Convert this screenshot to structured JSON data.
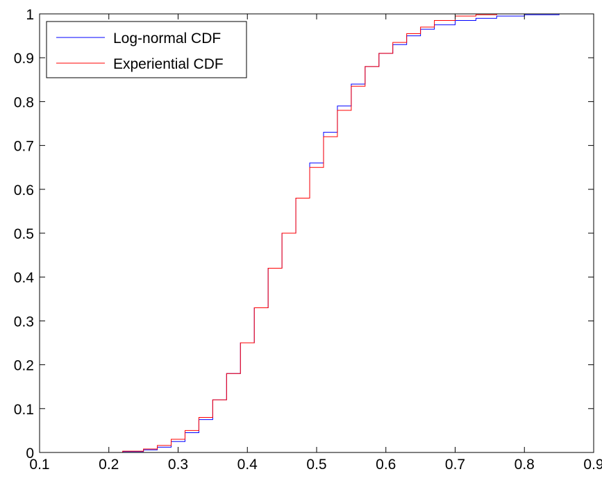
{
  "chart_data": {
    "type": "line",
    "xlim": [
      0.1,
      0.9
    ],
    "ylim": [
      0,
      1
    ],
    "xticks": [
      "0.1",
      "0.2",
      "0.3",
      "0.4",
      "0.5",
      "0.6",
      "0.7",
      "0.8",
      "0.9"
    ],
    "yticks": [
      "0",
      "0.1",
      "0.2",
      "0.3",
      "0.4",
      "0.5",
      "0.6",
      "0.7",
      "0.8",
      "0.9",
      "1"
    ],
    "grid": false,
    "legend_position": "top-left",
    "series": [
      {
        "name": "Log-normal CDF",
        "color": "#0000ff",
        "x": [
          0.19,
          0.22,
          0.25,
          0.27,
          0.29,
          0.31,
          0.33,
          0.35,
          0.37,
          0.39,
          0.41,
          0.43,
          0.45,
          0.47,
          0.49,
          0.51,
          0.53,
          0.55,
          0.57,
          0.59,
          0.61,
          0.63,
          0.65,
          0.67,
          0.7,
          0.73,
          0.76,
          0.8,
          0.85
        ],
        "y": [
          0.0,
          0.002,
          0.006,
          0.012,
          0.025,
          0.045,
          0.075,
          0.12,
          0.18,
          0.25,
          0.33,
          0.42,
          0.5,
          0.58,
          0.66,
          0.73,
          0.79,
          0.84,
          0.88,
          0.91,
          0.93,
          0.95,
          0.965,
          0.975,
          0.985,
          0.99,
          0.995,
          0.998,
          1.0
        ]
      },
      {
        "name": "Experiential CDF",
        "color": "#ff0000",
        "x": [
          0.19,
          0.22,
          0.25,
          0.27,
          0.29,
          0.31,
          0.33,
          0.35,
          0.37,
          0.39,
          0.41,
          0.43,
          0.45,
          0.47,
          0.49,
          0.51,
          0.53,
          0.55,
          0.57,
          0.59,
          0.61,
          0.63,
          0.65,
          0.67,
          0.7,
          0.73,
          0.76,
          0.8,
          0.85
        ],
        "y": [
          0.0,
          0.003,
          0.008,
          0.016,
          0.03,
          0.05,
          0.08,
          0.12,
          0.18,
          0.25,
          0.33,
          0.42,
          0.5,
          0.58,
          0.65,
          0.72,
          0.78,
          0.835,
          0.88,
          0.91,
          0.935,
          0.955,
          0.97,
          0.985,
          0.995,
          0.998,
          1.0,
          1.0,
          1.0
        ]
      }
    ]
  }
}
